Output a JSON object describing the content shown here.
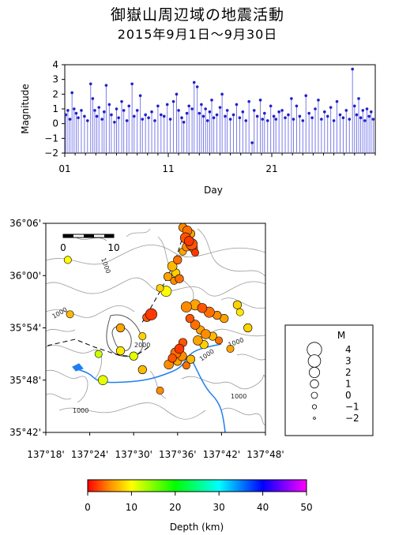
{
  "title": "御嶽山周辺域の地震活動",
  "subtitle": "2015年9月1日〜9月30日",
  "chart_data": [
    {
      "type": "line",
      "description_kind": "magnitude-time",
      "xlabel": "Day",
      "ylabel": "Magnitude",
      "xlim": [
        1,
        31
      ],
      "ylim": [
        -2,
        4
      ],
      "x_ticks": [
        "01",
        "11",
        "21"
      ],
      "y_ticks": [
        "−2",
        "−1",
        "0",
        "1",
        "2",
        "3",
        "4"
      ],
      "series": [
        {
          "color": "#2020c8",
          "points": [
            [
              1.1,
              0.6
            ],
            [
              1.3,
              0.9
            ],
            [
              1.5,
              0.3
            ],
            [
              1.7,
              2.1
            ],
            [
              1.9,
              1.0
            ],
            [
              2.1,
              0.7
            ],
            [
              2.3,
              0.4
            ],
            [
              2.6,
              0.9
            ],
            [
              2.9,
              0.5
            ],
            [
              3.2,
              0.2
            ],
            [
              3.5,
              2.7
            ],
            [
              3.7,
              1.7
            ],
            [
              3.9,
              0.9
            ],
            [
              4.1,
              0.5
            ],
            [
              4.3,
              1.1
            ],
            [
              4.6,
              0.3
            ],
            [
              4.8,
              0.8
            ],
            [
              5.0,
              2.6
            ],
            [
              5.3,
              1.3
            ],
            [
              5.5,
              0.6
            ],
            [
              5.8,
              0.1
            ],
            [
              6.0,
              1.0
            ],
            [
              6.2,
              0.4
            ],
            [
              6.5,
              1.5
            ],
            [
              6.7,
              0.9
            ],
            [
              7.0,
              0.2
            ],
            [
              7.2,
              1.2
            ],
            [
              7.5,
              2.7
            ],
            [
              7.7,
              0.5
            ],
            [
              8.0,
              0.9
            ],
            [
              8.3,
              1.9
            ],
            [
              8.5,
              0.3
            ],
            [
              8.8,
              0.6
            ],
            [
              9.1,
              0.4
            ],
            [
              9.4,
              0.8
            ],
            [
              9.7,
              0.2
            ],
            [
              10.0,
              1.2
            ],
            [
              10.3,
              0.6
            ],
            [
              10.6,
              0.5
            ],
            [
              10.9,
              1.3
            ],
            [
              11.2,
              0.3
            ],
            [
              11.5,
              1.5
            ],
            [
              11.8,
              2.0
            ],
            [
              12.0,
              0.9
            ],
            [
              12.3,
              0.4
            ],
            [
              12.5,
              0.1
            ],
            [
              12.8,
              0.7
            ],
            [
              13.0,
              1.2
            ],
            [
              13.3,
              1.0
            ],
            [
              13.5,
              2.8
            ],
            [
              13.8,
              2.5
            ],
            [
              14.0,
              0.7
            ],
            [
              14.2,
              1.3
            ],
            [
              14.4,
              0.5
            ],
            [
              14.6,
              1.0
            ],
            [
              14.8,
              0.2
            ],
            [
              15.0,
              0.8
            ],
            [
              15.2,
              1.6
            ],
            [
              15.4,
              0.4
            ],
            [
              15.7,
              0.6
            ],
            [
              16.0,
              1.1
            ],
            [
              16.2,
              2.0
            ],
            [
              16.5,
              0.5
            ],
            [
              16.7,
              0.9
            ],
            [
              17.0,
              0.3
            ],
            [
              17.3,
              0.6
            ],
            [
              17.6,
              1.3
            ],
            [
              17.9,
              0.4
            ],
            [
              18.2,
              0.8
            ],
            [
              18.5,
              0.2
            ],
            [
              18.8,
              1.5
            ],
            [
              19.1,
              -1.3
            ],
            [
              19.3,
              0.9
            ],
            [
              19.6,
              0.5
            ],
            [
              19.9,
              1.6
            ],
            [
              20.1,
              0.3
            ],
            [
              20.3,
              0.7
            ],
            [
              20.6,
              0.2
            ],
            [
              20.9,
              1.2
            ],
            [
              21.2,
              0.5
            ],
            [
              21.4,
              0.3
            ],
            [
              21.7,
              0.8
            ],
            [
              22.0,
              0.9
            ],
            [
              22.3,
              0.4
            ],
            [
              22.6,
              0.6
            ],
            [
              22.9,
              1.7
            ],
            [
              23.1,
              0.3
            ],
            [
              23.4,
              1.2
            ],
            [
              23.7,
              0.5
            ],
            [
              24.0,
              0.2
            ],
            [
              24.3,
              1.9
            ],
            [
              24.6,
              0.7
            ],
            [
              24.9,
              0.4
            ],
            [
              25.2,
              1.0
            ],
            [
              25.5,
              1.6
            ],
            [
              25.8,
              0.3
            ],
            [
              26.1,
              0.8
            ],
            [
              26.4,
              0.5
            ],
            [
              26.7,
              1.1
            ],
            [
              27.0,
              0.2
            ],
            [
              27.3,
              1.5
            ],
            [
              27.6,
              0.6
            ],
            [
              27.9,
              0.4
            ],
            [
              28.2,
              0.9
            ],
            [
              28.5,
              0.3
            ],
            [
              28.8,
              3.7
            ],
            [
              29.0,
              1.2
            ],
            [
              29.2,
              0.6
            ],
            [
              29.4,
              1.7
            ],
            [
              29.6,
              0.4
            ],
            [
              29.8,
              0.9
            ],
            [
              30.0,
              0.2
            ],
            [
              30.2,
              1.0
            ],
            [
              30.4,
              0.5
            ],
            [
              30.6,
              0.8
            ],
            [
              30.8,
              0.3
            ]
          ]
        }
      ]
    },
    {
      "type": "scatter",
      "description_kind": "epicenter-map",
      "xlim": [
        137.3,
        137.8
      ],
      "ylim": [
        35.7,
        36.1
      ],
      "x_ticks": [
        "137°18'",
        "137°24'",
        "137°30'",
        "137°36'",
        "137°42'",
        "137°48'"
      ],
      "y_ticks": [
        "35°42'",
        "35°48'",
        "35°54'",
        "36°00'",
        "36°06'"
      ],
      "scale_bar": {
        "start": "0",
        "end": "10"
      },
      "contour_labels": [
        "1000",
        "2000",
        "1000",
        "1000",
        "1000",
        "1000",
        "1000"
      ],
      "events": [
        {
          "lon": 137.612,
          "lat": 36.092,
          "m": 1.0,
          "d": 5
        },
        {
          "lon": 137.622,
          "lat": 36.086,
          "m": 1.5,
          "d": 4
        },
        {
          "lon": 137.63,
          "lat": 36.08,
          "m": 1.0,
          "d": 6
        },
        {
          "lon": 137.618,
          "lat": 36.072,
          "m": 2.0,
          "d": 3
        },
        {
          "lon": 137.626,
          "lat": 36.066,
          "m": 1.5,
          "d": 2
        },
        {
          "lon": 137.632,
          "lat": 36.06,
          "m": 2.5,
          "d": 3
        },
        {
          "lon": 137.62,
          "lat": 36.055,
          "m": 1.0,
          "d": 5
        },
        {
          "lon": 137.636,
          "lat": 36.052,
          "m": 1.0,
          "d": 4
        },
        {
          "lon": 137.612,
          "lat": 36.046,
          "m": 0.5,
          "d": 6
        },
        {
          "lon": 137.64,
          "lat": 36.044,
          "m": 0.5,
          "d": 2
        },
        {
          "lon": 137.6,
          "lat": 36.03,
          "m": 1.0,
          "d": 4
        },
        {
          "lon": 137.588,
          "lat": 36.018,
          "m": 1.5,
          "d": 7
        },
        {
          "lon": 137.596,
          "lat": 36.005,
          "m": 1.0,
          "d": 8
        },
        {
          "lon": 137.578,
          "lat": 35.998,
          "m": 1.0,
          "d": 6
        },
        {
          "lon": 137.592,
          "lat": 35.99,
          "m": 0.5,
          "d": 5
        },
        {
          "lon": 137.604,
          "lat": 35.994,
          "m": 1.0,
          "d": 4
        },
        {
          "lon": 137.56,
          "lat": 35.976,
          "m": 0.5,
          "d": 8
        },
        {
          "lon": 137.574,
          "lat": 35.97,
          "m": 2.0,
          "d": 10
        },
        {
          "lon": 137.62,
          "lat": 35.94,
          "m": 2.0,
          "d": 5
        },
        {
          "lon": 137.64,
          "lat": 35.944,
          "m": 2.0,
          "d": 6
        },
        {
          "lon": 137.656,
          "lat": 35.938,
          "m": 1.5,
          "d": 3
        },
        {
          "lon": 137.672,
          "lat": 35.93,
          "m": 2.0,
          "d": 4
        },
        {
          "lon": 137.69,
          "lat": 35.924,
          "m": 1.0,
          "d": 5
        },
        {
          "lon": 137.706,
          "lat": 35.918,
          "m": 1.0,
          "d": 6
        },
        {
          "lon": 137.736,
          "lat": 35.944,
          "m": 1.0,
          "d": 8
        },
        {
          "lon": 137.742,
          "lat": 35.93,
          "m": 0.5,
          "d": 9
        },
        {
          "lon": 137.628,
          "lat": 35.918,
          "m": 1.0,
          "d": 3
        },
        {
          "lon": 137.64,
          "lat": 35.906,
          "m": 1.5,
          "d": 4
        },
        {
          "lon": 137.652,
          "lat": 35.896,
          "m": 1.0,
          "d": 6
        },
        {
          "lon": 137.664,
          "lat": 35.888,
          "m": 1.5,
          "d": 5
        },
        {
          "lon": 137.68,
          "lat": 35.884,
          "m": 1.0,
          "d": 7
        },
        {
          "lon": 137.694,
          "lat": 35.876,
          "m": 0.5,
          "d": 4
        },
        {
          "lon": 137.646,
          "lat": 35.876,
          "m": 1.5,
          "d": 6
        },
        {
          "lon": 137.66,
          "lat": 35.868,
          "m": 1.0,
          "d": 8
        },
        {
          "lon": 137.612,
          "lat": 35.872,
          "m": 1.0,
          "d": 3
        },
        {
          "lon": 137.604,
          "lat": 35.86,
          "m": 1.5,
          "d": 2
        },
        {
          "lon": 137.596,
          "lat": 35.852,
          "m": 2.0,
          "d": 4
        },
        {
          "lon": 137.61,
          "lat": 35.846,
          "m": 1.5,
          "d": 5
        },
        {
          "lon": 137.588,
          "lat": 35.842,
          "m": 1.0,
          "d": 3
        },
        {
          "lon": 137.6,
          "lat": 35.836,
          "m": 1.0,
          "d": 6
        },
        {
          "lon": 137.58,
          "lat": 35.83,
          "m": 1.5,
          "d": 5
        },
        {
          "lon": 137.62,
          "lat": 35.828,
          "m": 0.5,
          "d": 4
        },
        {
          "lon": 137.63,
          "lat": 35.84,
          "m": 1.0,
          "d": 7
        },
        {
          "lon": 137.54,
          "lat": 35.926,
          "m": 2.5,
          "d": 2
        },
        {
          "lon": 137.53,
          "lat": 35.92,
          "m": 1.0,
          "d": 3
        },
        {
          "lon": 137.52,
          "lat": 35.884,
          "m": 0.5,
          "d": 8
        },
        {
          "lon": 137.47,
          "lat": 35.856,
          "m": 1.0,
          "d": 9
        },
        {
          "lon": 137.5,
          "lat": 35.846,
          "m": 1.0,
          "d": 11
        },
        {
          "lon": 137.52,
          "lat": 35.82,
          "m": 1.0,
          "d": 7
        },
        {
          "lon": 137.43,
          "lat": 35.8,
          "m": 1.5,
          "d": 11
        },
        {
          "lon": 137.42,
          "lat": 35.85,
          "m": 0.5,
          "d": 12
        },
        {
          "lon": 137.35,
          "lat": 36.03,
          "m": 0.5,
          "d": 10
        },
        {
          "lon": 137.355,
          "lat": 35.926,
          "m": 0.5,
          "d": 7
        },
        {
          "lon": 137.47,
          "lat": 35.9,
          "m": 1.0,
          "d": 6
        },
        {
          "lon": 137.76,
          "lat": 35.9,
          "m": 1.0,
          "d": 8
        },
        {
          "lon": 137.72,
          "lat": 35.86,
          "m": 0.5,
          "d": 6
        },
        {
          "lon": 137.56,
          "lat": 35.78,
          "m": 0.5,
          "d": 5
        }
      ]
    },
    {
      "type": "legend",
      "title": "M",
      "entries": [
        "4",
        "3",
        "2",
        "1",
        "0",
        "−1",
        "−2"
      ]
    },
    {
      "type": "colorbar",
      "label": "Depth (km)",
      "range": [
        0,
        50
      ],
      "ticks": [
        "0",
        "10",
        "20",
        "30",
        "40",
        "50"
      ]
    }
  ]
}
